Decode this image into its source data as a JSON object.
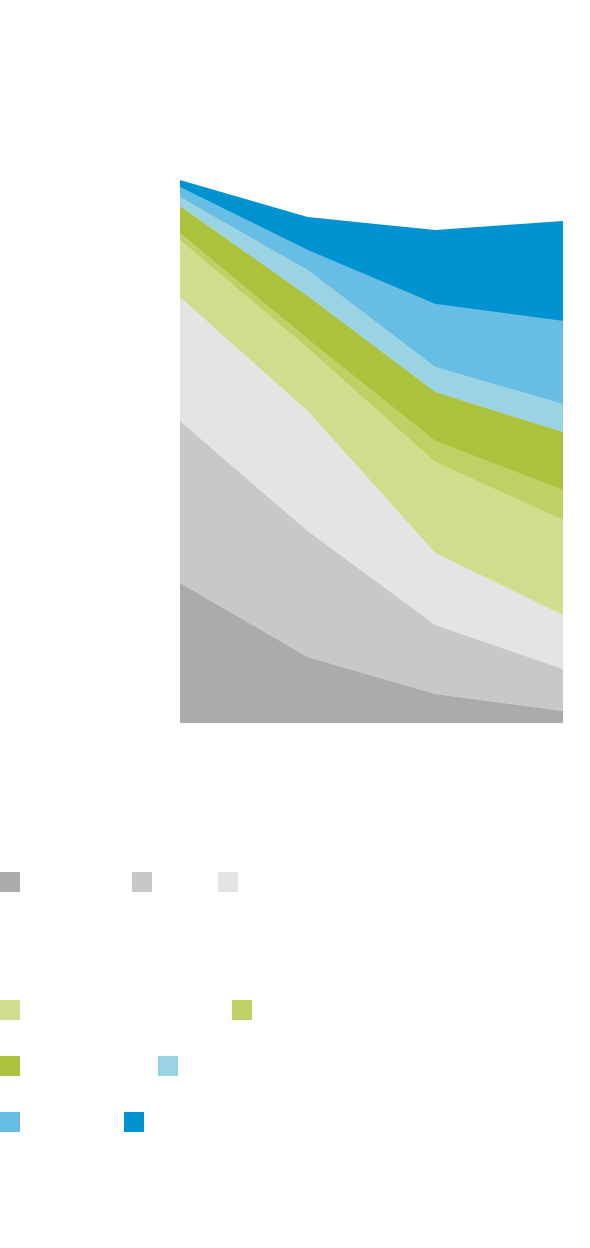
{
  "chart_data": {
    "type": "stacked-area",
    "categories": [
      null,
      null,
      null,
      null
    ],
    "ylim": [
      0,
      543
    ],
    "series": [
      {
        "color": "#ababab",
        "values": [
          140,
          66,
          29,
          12
        ]
      },
      {
        "color": "#c8c8c8",
        "values": [
          162,
          126,
          69,
          42
        ]
      },
      {
        "color": "#e4e4e4",
        "values": [
          124,
          120,
          72,
          54
        ]
      },
      {
        "color": "#cfdd8d",
        "values": [
          57,
          63,
          91,
          95
        ]
      },
      {
        "color": "#bfd164",
        "values": [
          7,
          9,
          21,
          30
        ]
      },
      {
        "color": "#abc23c",
        "values": [
          27,
          43,
          49,
          58
        ]
      },
      {
        "color": "#9ad3e3",
        "values": [
          9,
          26,
          25,
          28
        ]
      },
      {
        "color": "#67bde3",
        "values": [
          10,
          20,
          63,
          83
        ]
      },
      {
        "color": "#0093d1",
        "values": [
          7,
          33,
          74,
          100
        ]
      }
    ]
  }
}
